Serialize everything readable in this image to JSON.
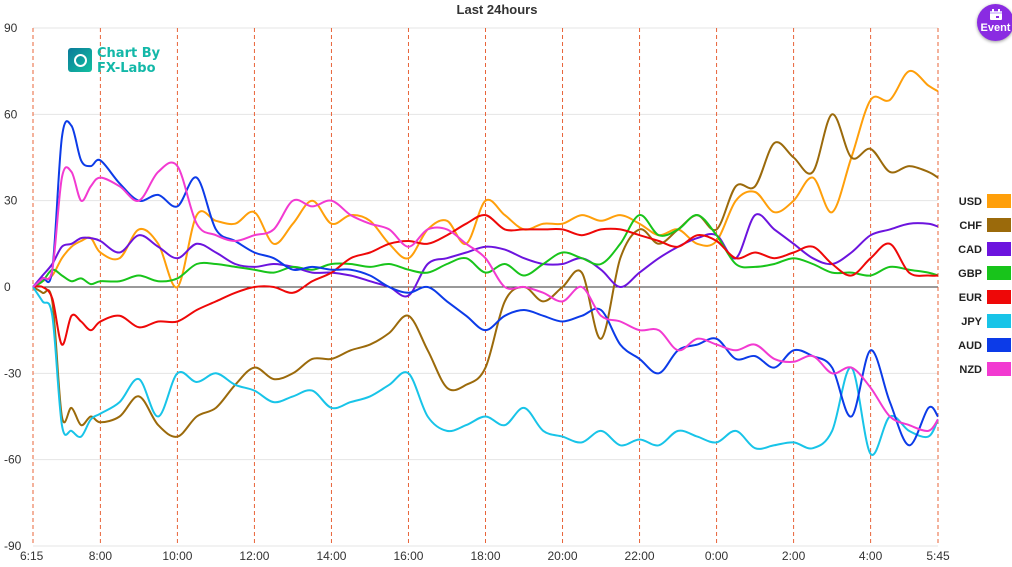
{
  "header": {
    "event_label": "Event"
  },
  "logo": {
    "line1": "Chart By",
    "line2": "FX-Labo"
  },
  "chart_data": {
    "type": "line",
    "title": "Last 24hours",
    "ylim": [
      -90,
      90
    ],
    "yticks": [
      90,
      60,
      30,
      0,
      -30,
      -60,
      -90
    ],
    "x_range": [
      "6:15",
      "5:45"
    ],
    "x": [
      "6:15",
      "6:30",
      "6:45",
      "7:00",
      "7:15",
      "7:30",
      "7:45",
      "8:00",
      "8:30",
      "9:00",
      "9:30",
      "10:00",
      "10:30",
      "11:00",
      "11:30",
      "12:00",
      "12:30",
      "13:00",
      "13:30",
      "14:00",
      "14:30",
      "15:00",
      "15:30",
      "16:00",
      "16:30",
      "17:00",
      "17:30",
      "18:00",
      "18:30",
      "19:00",
      "19:30",
      "20:00",
      "20:30",
      "21:00",
      "21:30",
      "22:00",
      "22:30",
      "23:00",
      "23:30",
      "0:00",
      "0:30",
      "1:00",
      "1:30",
      "2:00",
      "2:30",
      "3:00",
      "3:30",
      "4:00",
      "4:30",
      "5:00",
      "5:30",
      "5:45"
    ],
    "xticks": [
      "6:15",
      "8:00",
      "10:00",
      "12:00",
      "14:00",
      "16:00",
      "18:00",
      "20:00",
      "22:00",
      "0:00",
      "2:00",
      "4:00",
      "5:45"
    ],
    "grid": {
      "vertical_dashed": true,
      "horizontal": true
    },
    "legend_position": "right",
    "series": [
      {
        "name": "USD",
        "color": "#ff9f0a",
        "values": [
          0,
          2,
          4,
          10,
          14,
          16,
          17,
          12,
          10,
          20,
          15,
          0,
          25,
          23,
          22,
          26,
          15,
          22,
          30,
          22,
          25,
          23,
          15,
          10,
          20,
          23,
          15,
          30,
          25,
          20,
          22,
          22,
          25,
          23,
          25,
          22,
          18,
          20,
          15,
          16,
          30,
          33,
          26,
          30,
          38,
          26,
          45,
          65,
          65,
          75,
          70,
          68
        ]
      },
      {
        "name": "CHF",
        "color": "#9b6a0b",
        "values": [
          0,
          -2,
          -5,
          -45,
          -42,
          -48,
          -45,
          -47,
          -45,
          -38,
          -48,
          -52,
          -45,
          -42,
          -34,
          -28,
          -32,
          -30,
          -25,
          -25,
          -22,
          -20,
          -16,
          -10,
          -22,
          -35,
          -34,
          -28,
          -5,
          0,
          -5,
          0,
          5,
          -18,
          10,
          20,
          15,
          20,
          25,
          20,
          35,
          35,
          50,
          45,
          40,
          60,
          45,
          48,
          40,
          42,
          40,
          38
        ]
      },
      {
        "name": "CAD",
        "color": "#6c14de",
        "values": [
          0,
          4,
          8,
          14,
          15,
          17,
          17,
          16,
          12,
          18,
          14,
          10,
          15,
          12,
          8,
          7,
          8,
          7,
          5,
          5,
          4,
          2,
          0,
          -3,
          8,
          10,
          12,
          14,
          13,
          10,
          8,
          8,
          10,
          6,
          0,
          5,
          10,
          14,
          17,
          18,
          10,
          25,
          20,
          15,
          10,
          8,
          12,
          18,
          20,
          22,
          22,
          21
        ]
      },
      {
        "name": "GBP",
        "color": "#18c41b",
        "values": [
          0,
          2,
          6,
          4,
          2,
          3,
          1,
          2,
          2,
          4,
          2,
          3,
          8,
          8,
          7,
          6,
          5,
          7,
          6,
          8,
          8,
          7,
          8,
          6,
          5,
          8,
          10,
          5,
          8,
          4,
          8,
          12,
          10,
          8,
          15,
          25,
          18,
          20,
          25,
          18,
          8,
          7,
          8,
          10,
          8,
          5,
          5,
          4,
          7,
          6,
          5,
          4
        ]
      },
      {
        "name": "EUR",
        "color": "#ee0808",
        "values": [
          0,
          0,
          -4,
          -20,
          -10,
          -12,
          -15,
          -12,
          -10,
          -14,
          -12,
          -12,
          -8,
          -5,
          -2,
          0,
          0,
          -2,
          2,
          5,
          10,
          12,
          15,
          16,
          15,
          18,
          22,
          25,
          20,
          20,
          20,
          20,
          18,
          20,
          20,
          18,
          16,
          14,
          18,
          16,
          10,
          12,
          10,
          12,
          14,
          8,
          4,
          10,
          15,
          5,
          4,
          4
        ]
      },
      {
        "name": "JPY",
        "color": "#18c4e8",
        "values": [
          0,
          -5,
          -10,
          -48,
          -50,
          -52,
          -46,
          -44,
          -40,
          -32,
          -45,
          -30,
          -33,
          -30,
          -34,
          -36,
          -40,
          -38,
          -36,
          -42,
          -40,
          -38,
          -34,
          -30,
          -45,
          -50,
          -48,
          -45,
          -48,
          -42,
          -50,
          -52,
          -54,
          -50,
          -55,
          -53,
          -55,
          -50,
          -52,
          -54,
          -50,
          -56,
          -55,
          -54,
          -56,
          -50,
          -28,
          -58,
          -45,
          -50,
          -52,
          -46
        ]
      },
      {
        "name": "AUD",
        "color": "#0c3be8",
        "values": [
          0,
          3,
          6,
          52,
          56,
          44,
          42,
          44,
          36,
          30,
          32,
          28,
          38,
          20,
          16,
          12,
          10,
          6,
          7,
          6,
          6,
          4,
          0,
          -2,
          0,
          -5,
          -10,
          -15,
          -10,
          -8,
          -10,
          -12,
          -10,
          -8,
          -20,
          -25,
          -30,
          -22,
          -20,
          -18,
          -25,
          -24,
          -28,
          -22,
          -24,
          -28,
          -45,
          -22,
          -40,
          -55,
          -42,
          -45
        ]
      },
      {
        "name": "NZD",
        "color": "#f23ad1",
        "values": [
          0,
          3,
          6,
          38,
          40,
          30,
          35,
          38,
          35,
          30,
          40,
          42,
          22,
          18,
          16,
          18,
          20,
          30,
          28,
          30,
          25,
          22,
          20,
          14,
          20,
          20,
          15,
          10,
          0,
          0,
          -2,
          -5,
          0,
          -10,
          -12,
          -15,
          -15,
          -22,
          -18,
          -20,
          -22,
          -20,
          -25,
          -26,
          -24,
          -30,
          -28,
          -35,
          -45,
          -48,
          -50,
          -46
        ]
      }
    ]
  }
}
